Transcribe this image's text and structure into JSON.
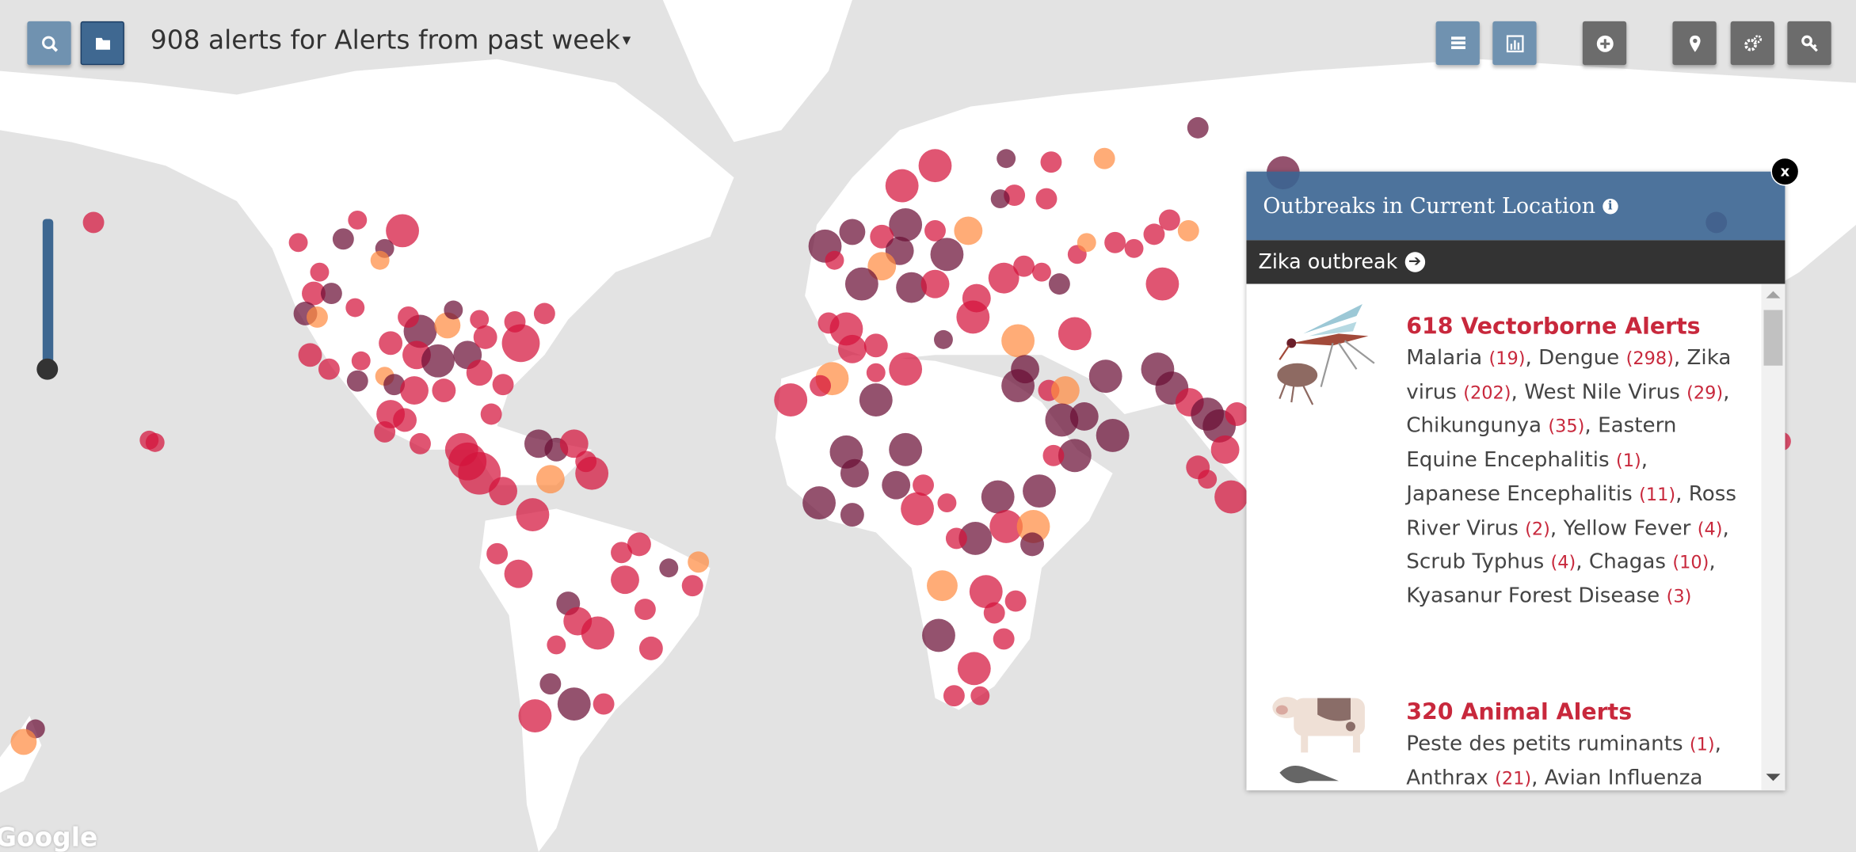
{
  "header": {
    "title": "908 alerts for Alerts from past week",
    "caret": "▾"
  },
  "toolbar": {
    "left": [
      {
        "icon": "search-icon"
      },
      {
        "icon": "folder-icon"
      }
    ],
    "right": [
      {
        "icon": "list-icon"
      },
      {
        "icon": "bar-chart-icon"
      },
      {
        "icon": "plus-circle-icon"
      },
      {
        "icon": "map-marker-icon"
      },
      {
        "icon": "gears-icon"
      },
      {
        "icon": "key-icon"
      }
    ]
  },
  "colors": {
    "accent": "#c8283c",
    "panel_header": "#3a6491",
    "dark_bar": "#333333",
    "marker_red": "#d4143c",
    "marker_dark": "#6b0f36",
    "marker_orange": "#ff8c42"
  },
  "panel": {
    "title": "Outbreaks in Current Location",
    "info_icon": "i",
    "outbreak": "Zika outbreak",
    "close": "x",
    "categories": [
      {
        "title": "618 Vectorborne Alerts",
        "icon": "mosquito-flea-icon",
        "items": [
          {
            "name": "Malaria",
            "count": "(19)"
          },
          {
            "name": "Dengue",
            "count": "(298)"
          },
          {
            "name": "Zika virus",
            "count": "(202)"
          },
          {
            "name": "West Nile Virus",
            "count": "(29)"
          },
          {
            "name": "Chikungunya",
            "count": "(35)"
          },
          {
            "name": "Eastern Equine Encephalitis",
            "count": "(1)"
          },
          {
            "name": "Japanese Encephalitis",
            "count": "(11)"
          },
          {
            "name": "Ross River Virus",
            "count": "(2)"
          },
          {
            "name": "Yellow Fever",
            "count": "(4)"
          },
          {
            "name": "Scrub Typhus",
            "count": "(4)"
          },
          {
            "name": "Chagas",
            "count": "(10)"
          },
          {
            "name": "Kyasanur Forest Disease",
            "count": "(3)"
          }
        ]
      },
      {
        "title": "320 Animal Alerts",
        "icon": "cow-bird-icon",
        "items": [
          {
            "name": "Peste des petits ruminants",
            "count": "(1)"
          },
          {
            "name": "Anthrax",
            "count": "(21)"
          },
          {
            "name": "Avian Influenza",
            "count": ""
          }
        ]
      }
    ]
  },
  "map": {
    "attribution": "Google"
  }
}
